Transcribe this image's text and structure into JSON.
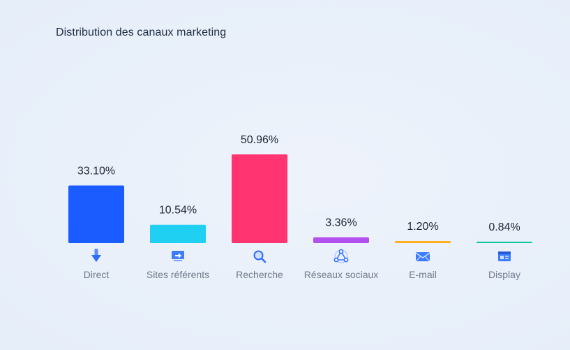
{
  "chart_data": {
    "type": "bar",
    "title": "Distribution des canaux marketing",
    "categories": [
      "Direct",
      "Sites référents",
      "Recherche",
      "Réseaux sociaux",
      "E-mail",
      "Display"
    ],
    "values": [
      33.1,
      10.54,
      50.96,
      3.36,
      1.2,
      0.84
    ],
    "value_labels": [
      "33.10%",
      "10.54%",
      "50.96%",
      "3.36%",
      "1.20%",
      "0.84%"
    ],
    "colors": [
      "#1a5cff",
      "#1fd0f3",
      "#ff3470",
      "#b44ff0",
      "#ffb020",
      "#14c7a3"
    ],
    "icons": [
      "arrow-down-icon",
      "monitor-arrow-icon",
      "search-icon",
      "social-network-icon",
      "envelope-icon",
      "display-window-icon"
    ],
    "ylim": [
      0,
      50.96
    ],
    "grid": false,
    "legend": "none"
  }
}
